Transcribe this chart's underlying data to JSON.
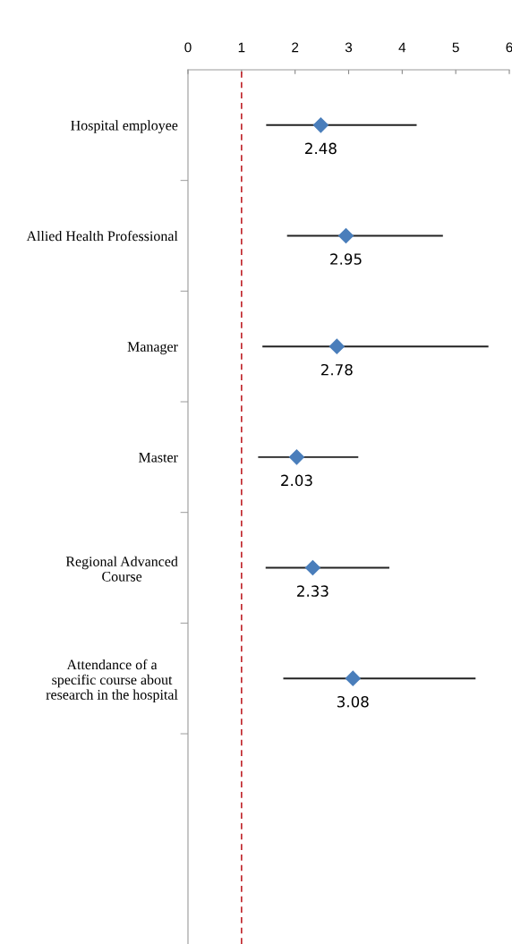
{
  "chart_data": {
    "type": "scatter",
    "orientation": "horizontal",
    "categories": [
      "Hospital employee",
      "Allied Health Professional",
      "Manager",
      "Master",
      "Regional Advanced\nCourse",
      "Attendance of a\nspecific course about\nresearch in the hospital",
      null
    ],
    "values": [
      2.48,
      2.95,
      2.78,
      2.03,
      2.33,
      3.08,
      null
    ],
    "errors": [
      [
        1.46,
        4.27
      ],
      [
        1.85,
        4.76
      ],
      [
        1.39,
        5.61
      ],
      [
        1.31,
        3.18
      ],
      [
        1.45,
        3.76
      ],
      [
        1.78,
        5.37
      ],
      null
    ],
    "color": "#4a7ebb",
    "marker": "diamond",
    "data_labels": true,
    "xlim": [
      0,
      6
    ],
    "xticks": [
      0,
      1,
      2,
      3,
      4,
      5,
      6
    ],
    "grid": false,
    "ref_lines": [
      {
        "axis": "x",
        "value": 1,
        "color": "#c0272d",
        "line_style": "dashed"
      }
    ]
  }
}
